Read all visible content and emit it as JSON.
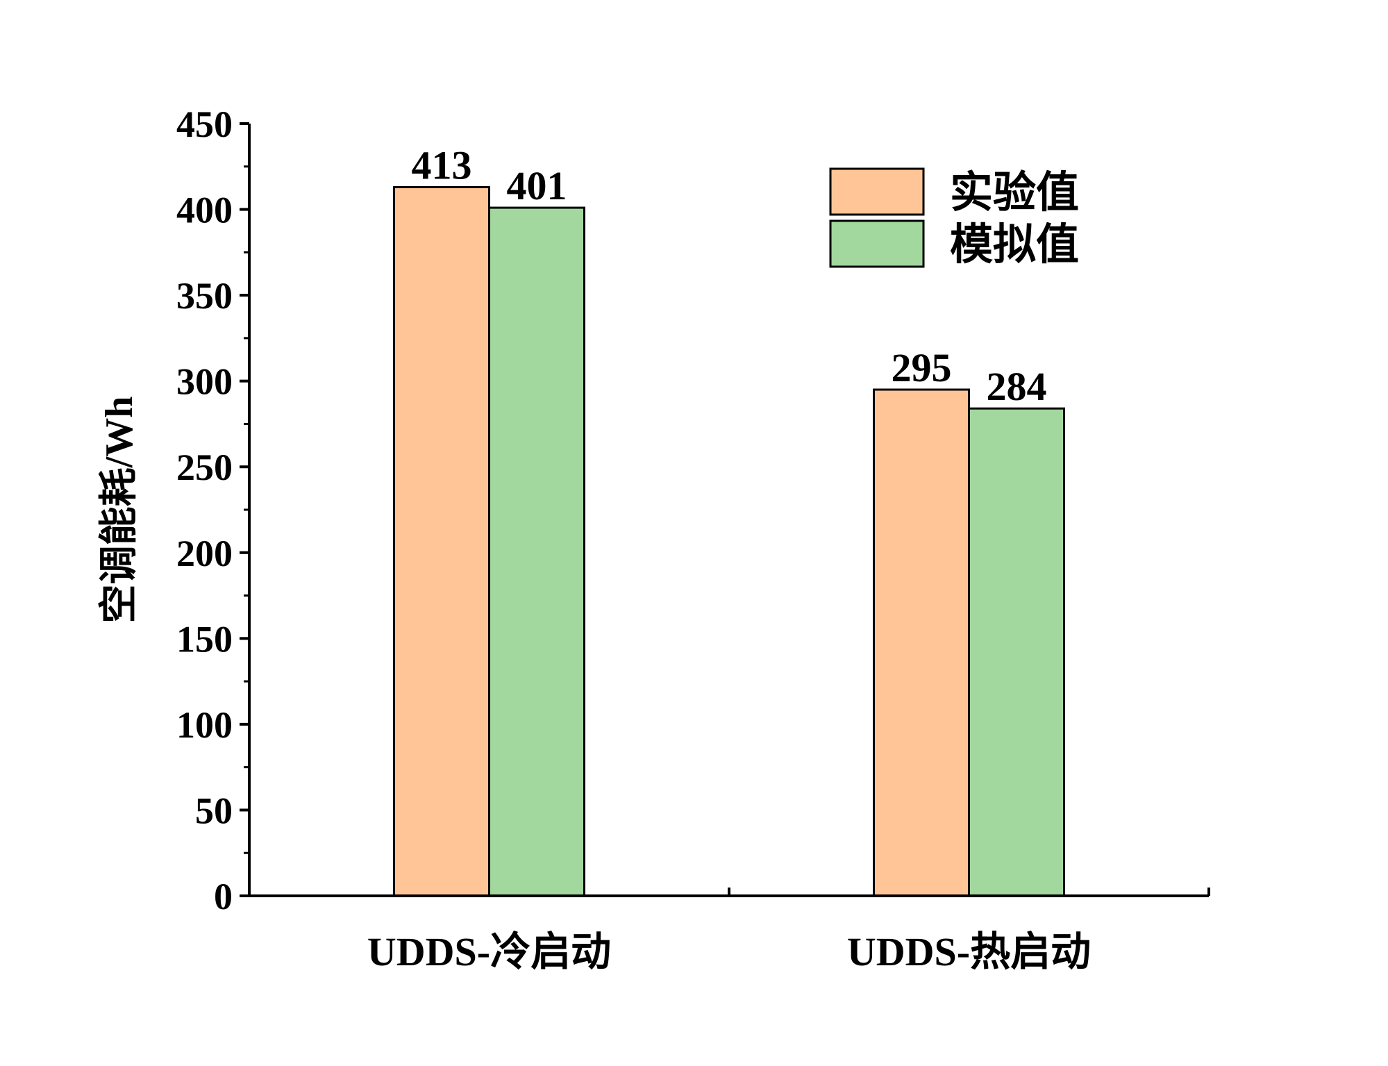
{
  "chart_data": {
    "type": "bar",
    "categories": [
      "UDDS-冷启动",
      "UDDS-热启动"
    ],
    "series": [
      {
        "name": "实验值",
        "values": [
          413,
          295
        ],
        "color": "#FFC596"
      },
      {
        "name": "模拟值",
        "values": [
          401,
          284
        ],
        "color": "#A2D89E"
      }
    ],
    "title": "",
    "xlabel": "",
    "ylabel": "空调能耗/Wh",
    "ylim": [
      0,
      450
    ],
    "yticks": [
      0,
      50,
      100,
      150,
      200,
      250,
      300,
      350,
      400,
      450
    ],
    "grid": false,
    "legend_position": "top-right",
    "data_labels": true
  }
}
